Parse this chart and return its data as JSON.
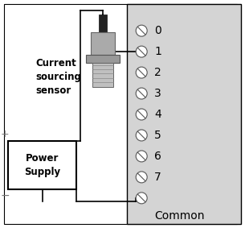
{
  "bg_color": "#ffffff",
  "white": "#ffffff",
  "black": "#000000",
  "light_gray": "#e0e0e0",
  "mid_gray": "#b8b8b8",
  "dark_gray": "#888888",
  "module_facecolor": "#d4d4d4",
  "channel_labels": [
    "0",
    "1",
    "2",
    "3",
    "4",
    "5",
    "6",
    "7"
  ],
  "common_label": "Common",
  "sensor_label": "Current\nsourcing\nsensor",
  "power_label": "Power\nSupply",
  "outer_box": true
}
